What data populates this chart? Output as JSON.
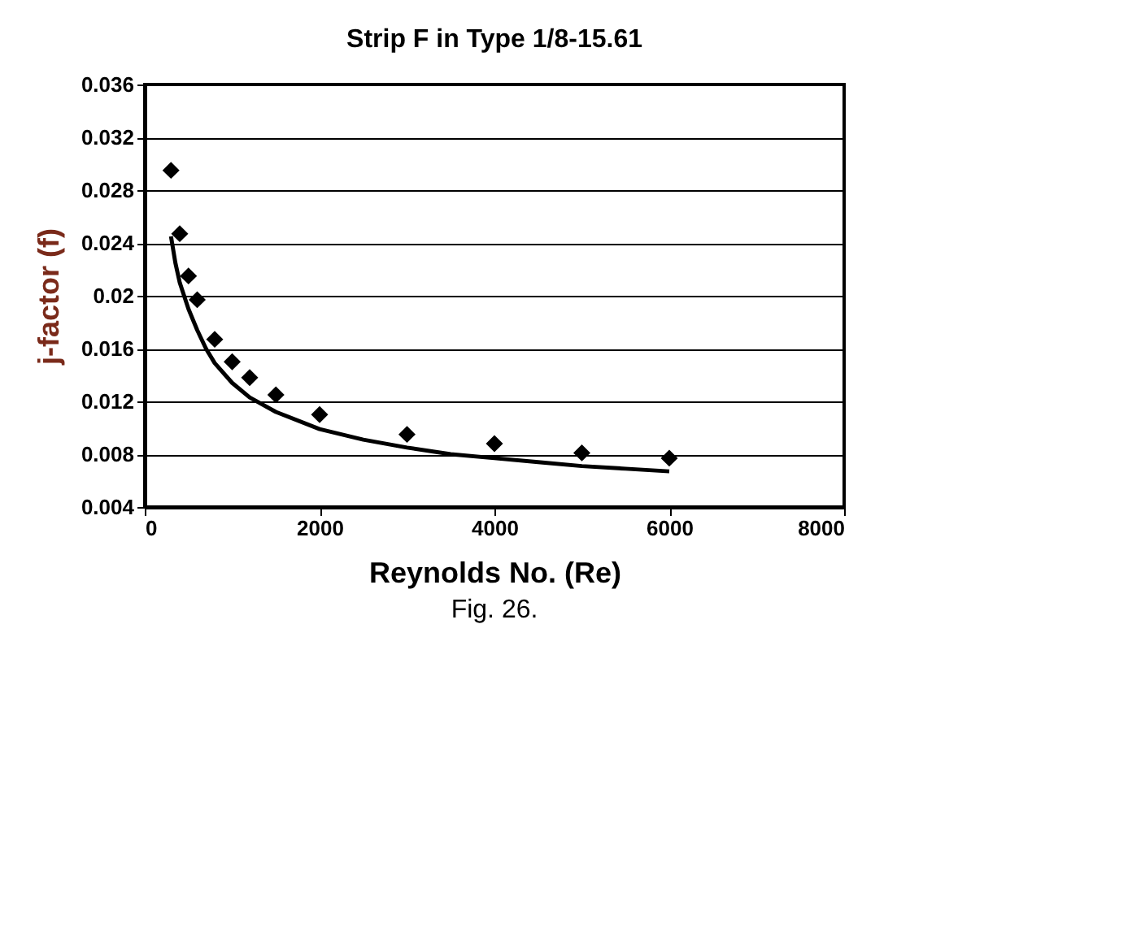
{
  "chart_data": {
    "type": "scatter",
    "title": "Strip F in Type 1/8-15.61",
    "xlabel": "Reynolds No. (Re)",
    "ylabel": "j-factor (f)",
    "annotations": [
      "Fig. 26."
    ],
    "xlim": [
      0,
      8000
    ],
    "xticks": [
      0,
      2000,
      4000,
      6000,
      8000
    ],
    "ylim": [
      0.004,
      0.036
    ],
    "yticks": [
      0.004,
      0.008,
      0.012,
      0.016,
      0.02,
      0.024,
      0.028,
      0.032,
      0.036
    ],
    "grid": "y",
    "series": [
      {
        "marker": "diamond",
        "color": "#000000",
        "x": [
          300,
          400,
          500,
          600,
          800,
          1000,
          1200,
          1500,
          2000,
          3000,
          4000,
          5000,
          6000
        ],
        "values": [
          0.0295,
          0.0247,
          0.0215,
          0.0197,
          0.0167,
          0.015,
          0.0138,
          0.0125,
          0.011,
          0.0095,
          0.0088,
          0.0081,
          0.0077
        ]
      },
      {
        "type": "line",
        "marker": "none",
        "line_style": "solid",
        "color": "#000000",
        "x": [
          300,
          350,
          400,
          500,
          600,
          700,
          800,
          1000,
          1200,
          1500,
          2000,
          2500,
          3000,
          3500,
          4000,
          4500,
          5000,
          5500,
          6000
        ],
        "values": [
          0.0245,
          0.0225,
          0.021,
          0.019,
          0.0174,
          0.016,
          0.0149,
          0.0134,
          0.0123,
          0.0112,
          0.0099,
          0.0091,
          0.0085,
          0.008,
          0.0077,
          0.0074,
          0.0071,
          0.0069,
          0.0067
        ]
      }
    ]
  }
}
